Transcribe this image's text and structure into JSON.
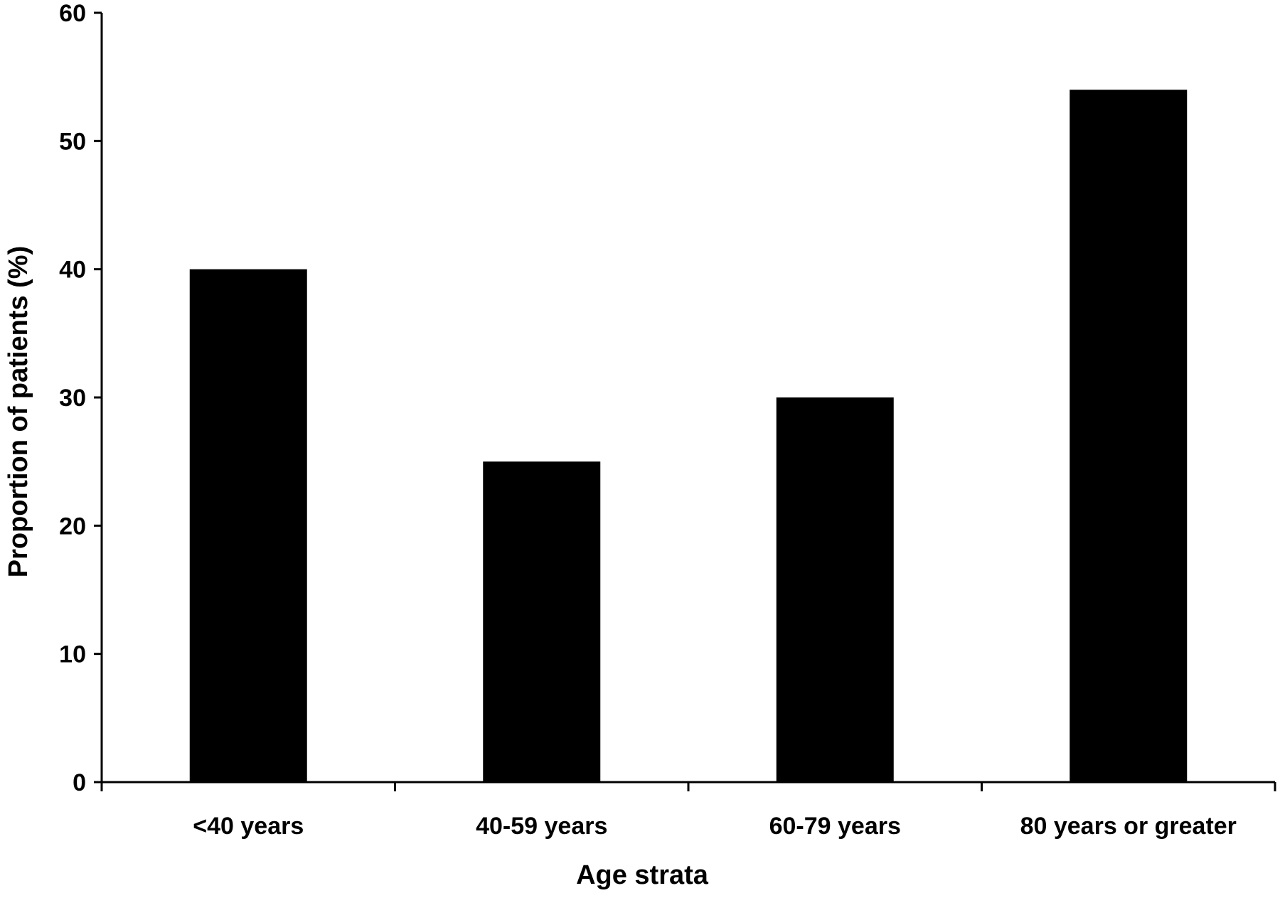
{
  "chart_data": {
    "type": "bar",
    "title": "",
    "xlabel": "Age strata",
    "ylabel": "Proportion of patients (%)",
    "categories": [
      "<40 years",
      "40-59 years",
      "60-79 years",
      "80 years or greater"
    ],
    "values": [
      40,
      25,
      30,
      54
    ],
    "ylim": [
      0,
      60
    ],
    "yticks": [
      "0",
      "10",
      "20",
      "30",
      "40",
      "50",
      "60"
    ],
    "grid": false,
    "bar_color": "#000000",
    "axis_color": "#000000"
  }
}
